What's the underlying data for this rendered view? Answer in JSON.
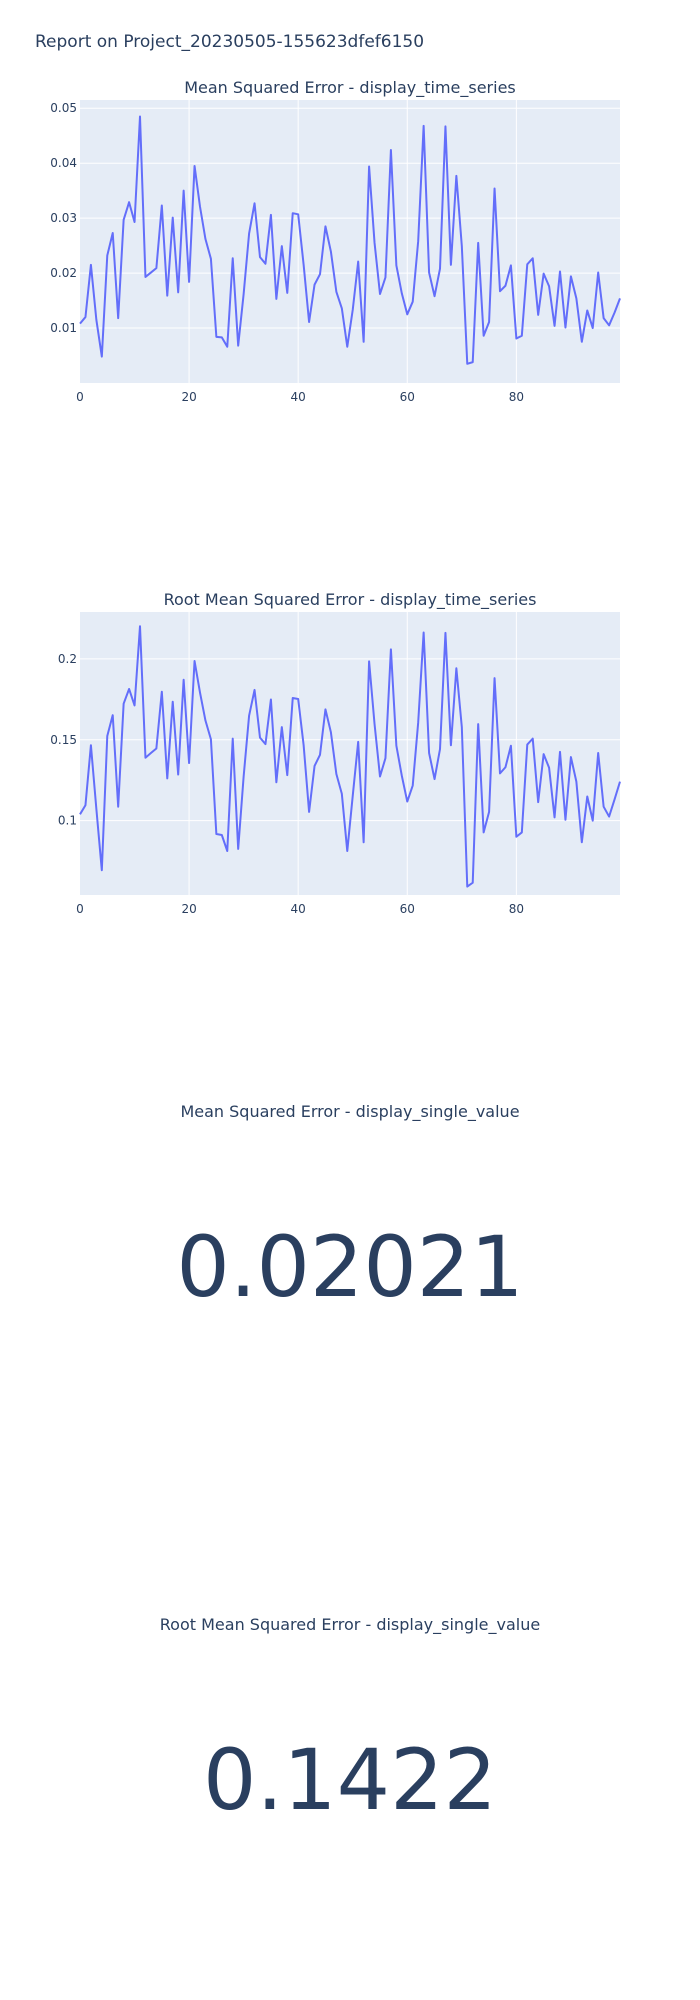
{
  "report": {
    "title": "Report on Project_20230505-155623dfef6150"
  },
  "colors": {
    "line": "#636efa",
    "plot_bg": "#e5ecf6",
    "grid": "#ffffff",
    "text": "#2a3f5f"
  },
  "chart_data": [
    {
      "type": "line",
      "title": "Mean Squared Error - display_time_series",
      "xlabel": "",
      "ylabel": "",
      "xlim": [
        0,
        99
      ],
      "ylim": [
        0.0,
        0.0515
      ],
      "x_ticks": [
        0,
        20,
        40,
        60,
        80
      ],
      "y_ticks": [
        0.01,
        0.02,
        0.03,
        0.04,
        0.05
      ],
      "y_tick_labels": [
        "0.01",
        "0.02",
        "0.03",
        "0.04",
        "0.05"
      ],
      "grid": true,
      "series": [
        {
          "values": [
            0.0108,
            0.012,
            0.0215,
            0.0115,
            0.0048,
            0.0232,
            0.0273,
            0.0118,
            0.0297,
            0.0329,
            0.0293,
            0.0485,
            0.0193,
            0.0201,
            0.0209,
            0.0323,
            0.0159,
            0.0301,
            0.0165,
            0.035,
            0.0184,
            0.0395,
            0.0321,
            0.0262,
            0.0226,
            0.0084,
            0.0083,
            0.0066,
            0.0227,
            0.0068,
            0.0162,
            0.0272,
            0.0327,
            0.0229,
            0.0217,
            0.0306,
            0.0153,
            0.0249,
            0.0164,
            0.0309,
            0.0307,
            0.0215,
            0.0111,
            0.0179,
            0.0198,
            0.0285,
            0.0239,
            0.0166,
            0.0136,
            0.0066,
            0.0133,
            0.0221,
            0.0075,
            0.0394,
            0.0255,
            0.0162,
            0.0192,
            0.0424,
            0.0214,
            0.0163,
            0.0125,
            0.0148,
            0.0258,
            0.0468,
            0.0201,
            0.0158,
            0.0208,
            0.0467,
            0.0215,
            0.0377,
            0.0249,
            0.0035,
            0.0038,
            0.0255,
            0.0086,
            0.0111,
            0.0354,
            0.0167,
            0.0177,
            0.0214,
            0.0081,
            0.0086,
            0.0216,
            0.0227,
            0.0124,
            0.0199,
            0.0176,
            0.0104,
            0.0203,
            0.0101,
            0.0194,
            0.0154,
            0.0075,
            0.0132,
            0.01,
            0.0201,
            0.0118,
            0.0105,
            0.0128,
            0.0154
          ]
        }
      ]
    },
    {
      "type": "line",
      "title": "Root Mean Squared Error - display_time_series",
      "xlabel": "",
      "ylabel": "",
      "xlim": [
        0,
        99
      ],
      "ylim": [
        0.054,
        0.229
      ],
      "x_ticks": [
        0,
        20,
        40,
        60,
        80
      ],
      "y_ticks": [
        0.1,
        0.15,
        0.2
      ],
      "y_tick_labels": [
        "0.1",
        "0.15",
        "0.2"
      ],
      "grid": true,
      "series": [
        {
          "values": [
            0.1039,
            0.1095,
            0.1466,
            0.1072,
            0.0693,
            0.1523,
            0.1652,
            0.1086,
            0.1723,
            0.1814,
            0.1712,
            0.2202,
            0.1389,
            0.1418,
            0.1446,
            0.1797,
            0.1261,
            0.1735,
            0.1285,
            0.1871,
            0.1356,
            0.1987,
            0.1792,
            0.1619,
            0.1503,
            0.0917,
            0.0911,
            0.0812,
            0.1507,
            0.0825,
            0.1273,
            0.1649,
            0.1808,
            0.1513,
            0.1473,
            0.1749,
            0.1237,
            0.1578,
            0.1281,
            0.1758,
            0.1752,
            0.1466,
            0.1054,
            0.1338,
            0.1407,
            0.1688,
            0.1546,
            0.1288,
            0.1166,
            0.0812,
            0.1153,
            0.1487,
            0.0866,
            0.1985,
            0.1597,
            0.1273,
            0.1386,
            0.2059,
            0.1463,
            0.1277,
            0.1118,
            0.1217,
            0.1606,
            0.2163,
            0.1418,
            0.1257,
            0.1442,
            0.2161,
            0.1466,
            0.1942,
            0.1578,
            0.0592,
            0.0616,
            0.1597,
            0.0927,
            0.1054,
            0.1881,
            0.1292,
            0.133,
            0.1463,
            0.09,
            0.0927,
            0.147,
            0.1507,
            0.1114,
            0.1411,
            0.1327,
            0.102,
            0.1425,
            0.1005,
            0.1393,
            0.1241,
            0.0866,
            0.1149,
            0.1,
            0.1418,
            0.1086,
            0.1025,
            0.1131,
            0.1241
          ]
        }
      ]
    }
  ],
  "single_values": [
    {
      "title": "Mean Squared Error - display_single_value",
      "value": "0.02021"
    },
    {
      "title": "Root Mean Squared Error - display_single_value",
      "value": "0.1422"
    }
  ]
}
